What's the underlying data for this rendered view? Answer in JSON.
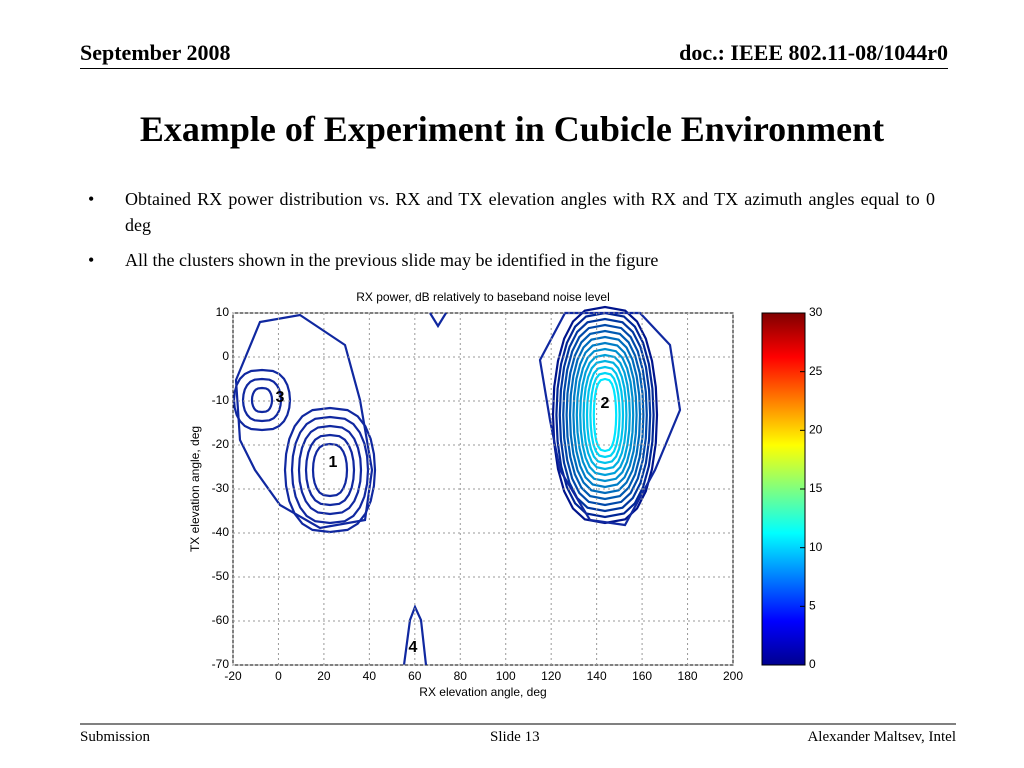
{
  "header": {
    "left": "September 2008",
    "right": "doc.: IEEE 802.11-08/1044r0"
  },
  "title": "Example of Experiment in Cubicle Environment",
  "bullets": [
    "Obtained RX power distribution vs. RX and TX elevation angles with RX and TX azimuth angles equal to 0 deg",
    "All the clusters shown in the previous slide may be identified in the figure"
  ],
  "chart_data": {
    "type": "contour",
    "title": "RX power, dB relatively to baseband noise level",
    "xlabel": "RX elevation angle, deg",
    "ylabel": "TX elevation angle, deg",
    "xlim": [
      -20,
      200
    ],
    "ylim": [
      -70,
      10
    ],
    "xticks": [
      -20,
      0,
      20,
      40,
      60,
      80,
      100,
      120,
      140,
      160,
      180,
      200
    ],
    "yticks": [
      -70,
      -60,
      -50,
      -40,
      -30,
      -20,
      -10,
      0,
      10
    ],
    "grid": true,
    "colormap": "jet",
    "colorbar": {
      "lim": [
        0,
        30
      ],
      "ticks": [
        0,
        5,
        10,
        15,
        20,
        25,
        30
      ]
    },
    "annotations": [
      "3",
      "2",
      "1",
      "4"
    ]
  },
  "footer": {
    "left": "Submission",
    "center": "Slide 13",
    "right": "Alexander Maltsev, Intel"
  }
}
